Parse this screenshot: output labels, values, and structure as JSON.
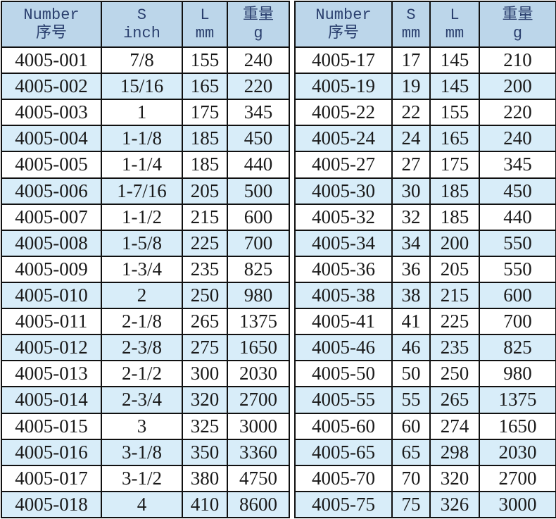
{
  "left_table": {
    "headers": [
      [
        "Number",
        "序号"
      ],
      [
        "S",
        "inch"
      ],
      [
        "L",
        "mm"
      ],
      [
        "重量",
        "g"
      ]
    ],
    "rows": [
      [
        "4005-001",
        "7/8",
        "155",
        "240"
      ],
      [
        "4005-002",
        "15/16",
        "165",
        "220"
      ],
      [
        "4005-003",
        "1",
        "175",
        "345"
      ],
      [
        "4005-004",
        "1-1/8",
        "185",
        "450"
      ],
      [
        "4005-005",
        "1-1/4",
        "185",
        "440"
      ],
      [
        "4005-006",
        "1-7/16",
        "205",
        "500"
      ],
      [
        "4005-007",
        "1-1/2",
        "215",
        "600"
      ],
      [
        "4005-008",
        "1-5/8",
        "225",
        "700"
      ],
      [
        "4005-009",
        "1-3/4",
        "235",
        "825"
      ],
      [
        "4005-010",
        "2",
        "250",
        "980"
      ],
      [
        "4005-011",
        "2-1/8",
        "265",
        "1375"
      ],
      [
        "4005-012",
        "2-3/8",
        "275",
        "1650"
      ],
      [
        "4005-013",
        "2-1/2",
        "300",
        "2030"
      ],
      [
        "4005-014",
        "2-3/4",
        "320",
        "2700"
      ],
      [
        "4005-015",
        "3",
        "325",
        "3000"
      ],
      [
        "4005-016",
        "3-1/8",
        "350",
        "3360"
      ],
      [
        "4005-017",
        "3-1/2",
        "380",
        "4750"
      ],
      [
        "4005-018",
        "4",
        "410",
        "8600"
      ]
    ]
  },
  "right_table": {
    "headers": [
      [
        "Number",
        "序号"
      ],
      [
        "S",
        "mm"
      ],
      [
        "L",
        "mm"
      ],
      [
        "重量",
        "g"
      ]
    ],
    "rows": [
      [
        "4005-17",
        "17",
        "145",
        "210"
      ],
      [
        "4005-19",
        "19",
        "145",
        "200"
      ],
      [
        "4005-22",
        "22",
        "155",
        "220"
      ],
      [
        "4005-24",
        "24",
        "165",
        "240"
      ],
      [
        "4005-27",
        "27",
        "175",
        "345"
      ],
      [
        "4005-30",
        "30",
        "185",
        "450"
      ],
      [
        "4005-32",
        "32",
        "185",
        "440"
      ],
      [
        "4005-34",
        "34",
        "200",
        "550"
      ],
      [
        "4005-36",
        "36",
        "205",
        "550"
      ],
      [
        "4005-38",
        "38",
        "215",
        "600"
      ],
      [
        "4005-41",
        "41",
        "225",
        "700"
      ],
      [
        "4005-46",
        "46",
        "235",
        "825"
      ],
      [
        "4005-50",
        "50",
        "250",
        "980"
      ],
      [
        "4005-55",
        "55",
        "265",
        "1375"
      ],
      [
        "4005-60",
        "60",
        "274",
        "1650"
      ],
      [
        "4005-65",
        "65",
        "298",
        "2030"
      ],
      [
        "4005-70",
        "70",
        "320",
        "2700"
      ],
      [
        "4005-75",
        "75",
        "326",
        "3000"
      ]
    ]
  }
}
